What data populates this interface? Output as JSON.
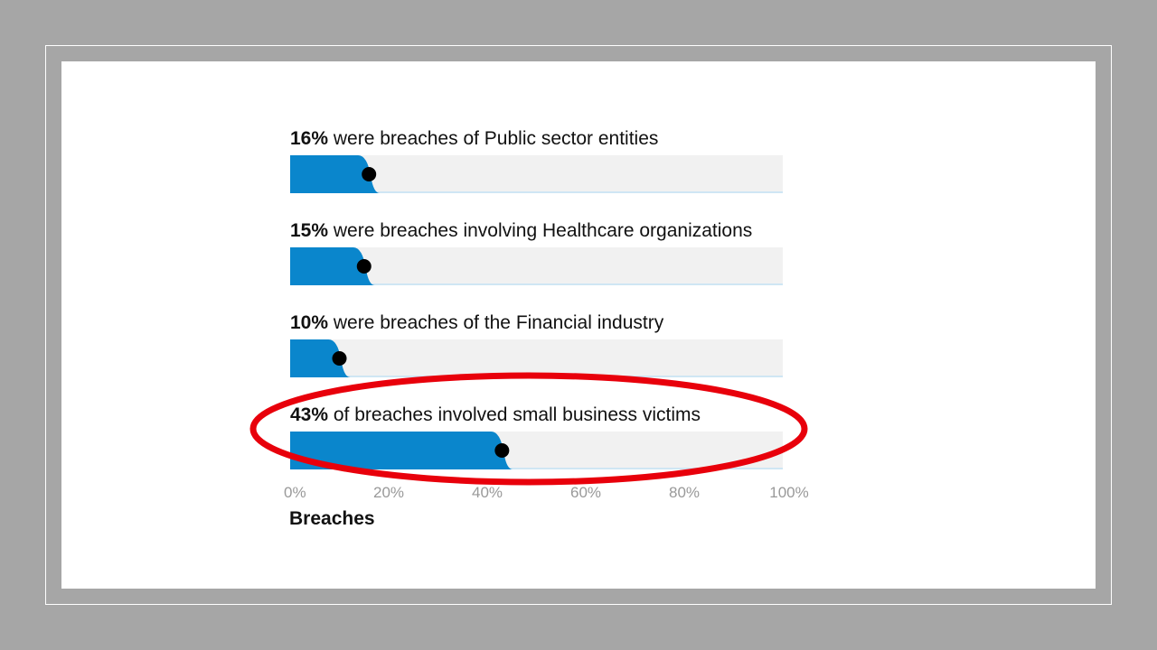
{
  "chart_data": {
    "type": "bar",
    "orientation": "horizontal",
    "items": [
      {
        "pct_label": "16%",
        "rest": " were breaches of Public sector entities",
        "value": 16
      },
      {
        "pct_label": "15%",
        "rest": " were breaches involving Healthcare organizations",
        "value": 15
      },
      {
        "pct_label": "10%",
        "rest": " were breaches of the Financial industry",
        "value": 10
      },
      {
        "pct_label": "43%",
        "rest": " of breaches involved small business victims",
        "value": 43
      }
    ],
    "x_ticks": [
      "0%",
      "20%",
      "40%",
      "60%",
      "80%",
      "100%"
    ],
    "xlim": [
      0,
      100
    ],
    "xlabel": "Breaches",
    "highlighted_item": 3,
    "colors": {
      "bar": "#0a86cc",
      "track": "#f1f1f1",
      "track_line": "#cfe6f4",
      "marker": "#000000",
      "highlight_ellipse": "#e8000b",
      "tick_text": "#999999",
      "label_text": "#111111"
    }
  }
}
